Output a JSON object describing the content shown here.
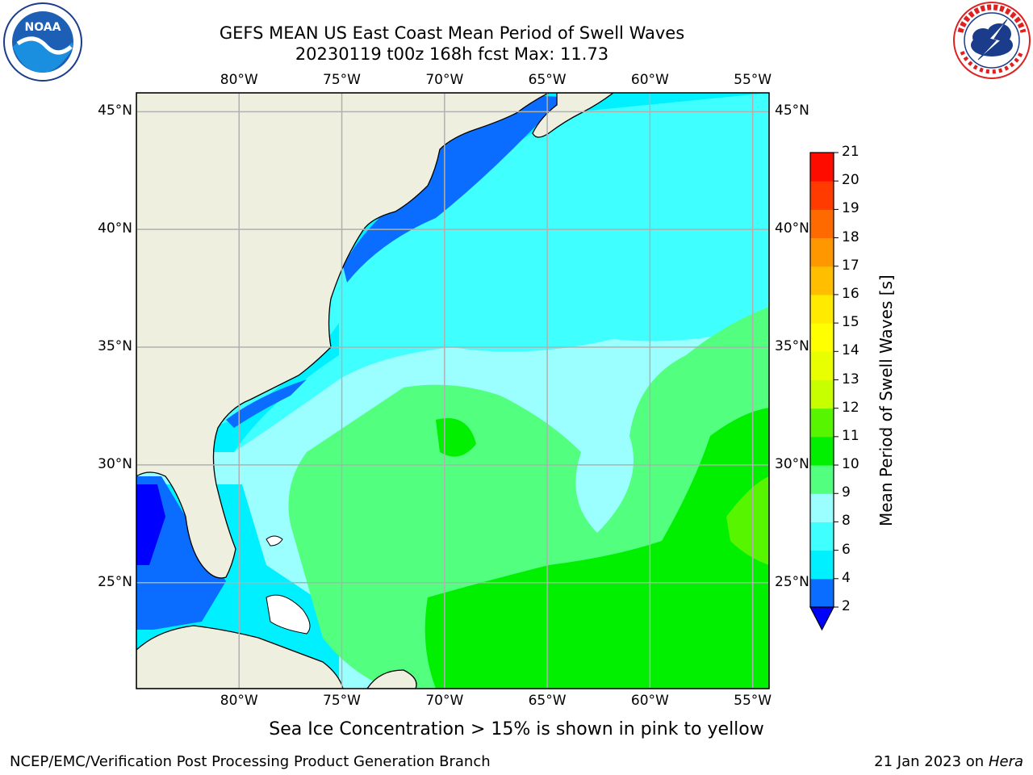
{
  "title": {
    "line1": "GEFS MEAN US East Coast Mean Period of Swell Waves",
    "line2": "20230119 t00z 168h fcst   Max: 11.73"
  },
  "logos": {
    "noaa_text": "NOAA",
    "noaa_icon": "noaa-logo",
    "nws_icon": "national-weather-service-logo"
  },
  "map": {
    "lon_labels": [
      "80°W",
      "75°W",
      "70°W",
      "65°W",
      "60°W",
      "55°W"
    ],
    "lat_labels": [
      "45°N",
      "40°N",
      "35°N",
      "30°N",
      "25°N"
    ],
    "land_color": "#efefdf",
    "grid_color": "#b0b0b0",
    "grid_lons": [
      -80,
      -75,
      -70,
      -65,
      -60,
      -55
    ],
    "grid_lats": [
      45,
      40,
      35,
      30,
      25
    ],
    "extent": {
      "lon_min": -85,
      "lon_max": -54.2,
      "lat_min": 20.5,
      "lat_max": 45.8
    }
  },
  "colorbar": {
    "label": "Mean Period of Swell Waves [s]",
    "ticks": [
      "2",
      "4",
      "6",
      "8",
      "9",
      "10",
      "11",
      "12",
      "13",
      "14",
      "15",
      "16",
      "17",
      "18",
      "19",
      "20",
      "21"
    ],
    "colors": [
      "#0a6dff",
      "#00f0ff",
      "#40ffff",
      "#9cffff",
      "#52ff7e",
      "#00f000",
      "#57f500",
      "#c8ff00",
      "#e7ff00",
      "#ffff00",
      "#ffea00",
      "#ffbf00",
      "#ff9800",
      "#ff6a00",
      "#ff3b00",
      "#ff0c00"
    ],
    "under_color": "#0000ff"
  },
  "footer": {
    "ice_note": "Sea Ice Concentration > 15% is shown in pink to yellow",
    "credit_left": "NCEP/EMC/Verification Post Processing Product Generation Branch",
    "credit_right_date": "21 Jan 2023 on",
    "credit_right_host": "Hera"
  }
}
